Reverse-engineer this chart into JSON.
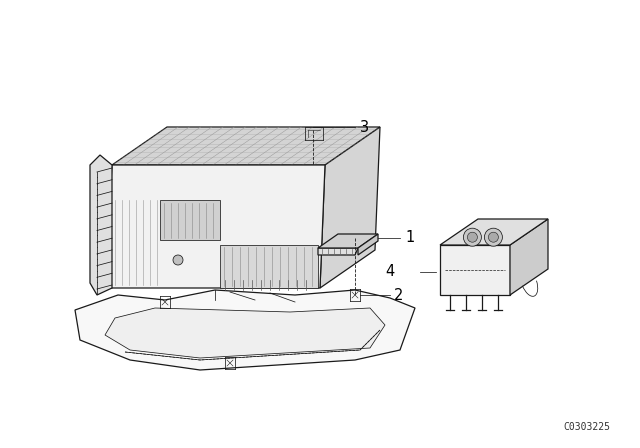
{
  "bg_color": "#ffffff",
  "line_color": "#1a1a1a",
  "label_color": "#000000",
  "diagram_code": "C0303225",
  "figsize": [
    6.4,
    4.48
  ],
  "dpi": 100,
  "lw_main": 0.9,
  "lw_thin": 0.55,
  "lw_thick": 1.3,
  "label_fontsize": 10.5,
  "code_fontsize": 7.0,
  "ecu_color": "#f2f2f2",
  "ecu_top_color": "#e8e8e8",
  "ecu_right_color": "#d5d5d5",
  "ecu_dark": "#c8c8c8",
  "relay_color": "#f0f0f0",
  "relay_top_color": "#e0e0e0",
  "relay_right_color": "#cccccc",
  "tray_color": "#f8f8f8",
  "hatch_color": "#aaaaaa"
}
